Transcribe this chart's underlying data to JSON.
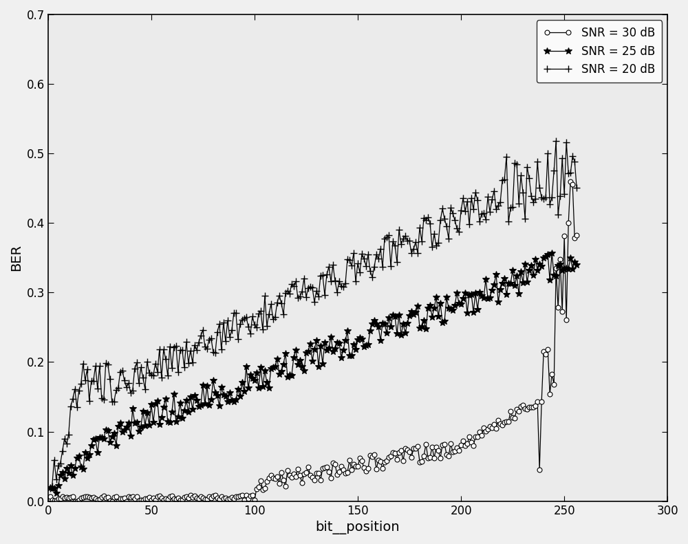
{
  "title": "",
  "xlabel": "bit__position",
  "ylabel": "BER",
  "xlim": [
    0,
    300
  ],
  "ylim": [
    0,
    0.7
  ],
  "xticks": [
    0,
    50,
    100,
    150,
    200,
    250,
    300
  ],
  "yticks": [
    0.0,
    0.1,
    0.2,
    0.3,
    0.4,
    0.5,
    0.6,
    0.7
  ],
  "legend_labels": [
    "SNR = 30 dB",
    "SNR = 25 dB",
    "SNR = 20 dB"
  ],
  "background_color": "#f0f0f0",
  "line_color": "#000000",
  "figsize": [
    10.0,
    7.91
  ],
  "dpi": 100
}
